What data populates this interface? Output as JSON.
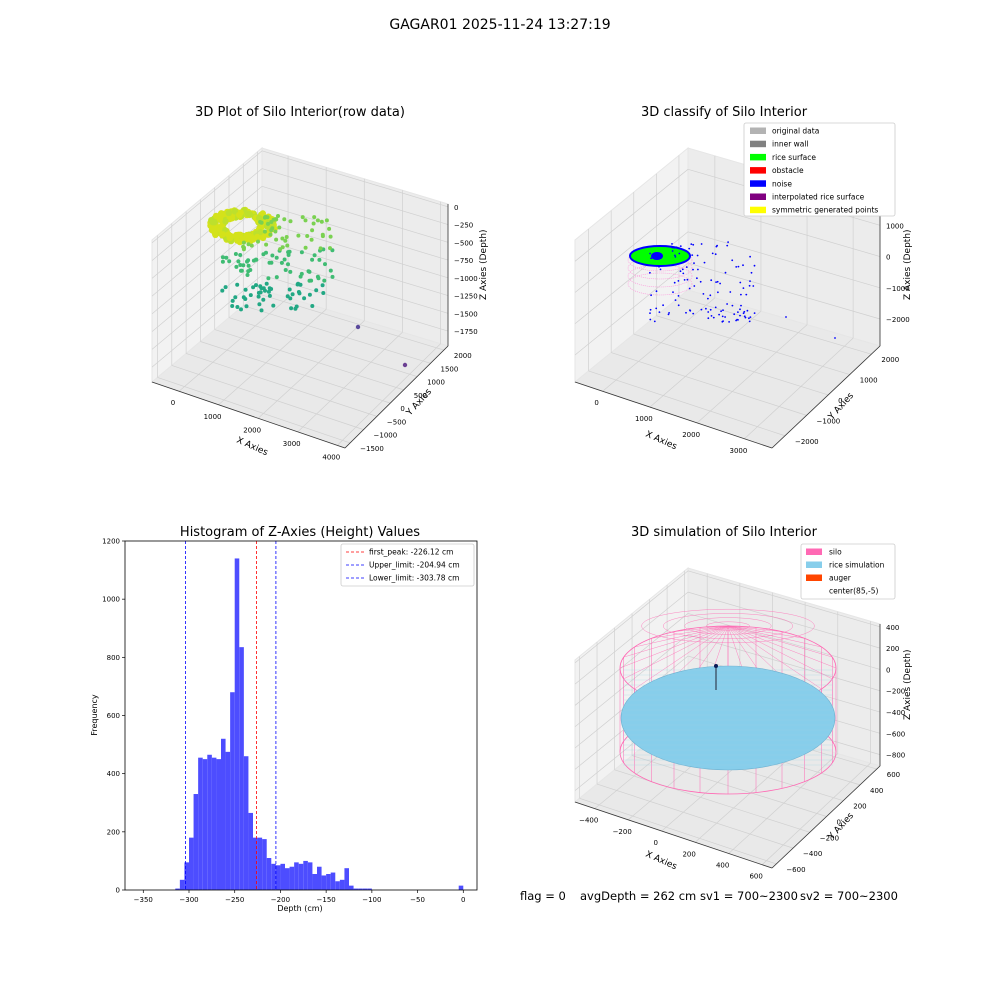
{
  "figure": {
    "suptitle": "GAGAR01 2025-11-24 13:27:19",
    "status": {
      "flag": "flag = 0",
      "avg_depth": "avgDepth = 262 cm",
      "sv1": "sv1 = 700~2300",
      "sv2": "sv2 = 700~2300"
    }
  },
  "colors": {
    "original_data": "#b3b3b3",
    "inner_wall": "#808080",
    "rice_surface": "#00ff00",
    "obstacle": "#ff0000",
    "noise": "#0000ff",
    "interpolated_rice_surface": "#800080",
    "symmetric_generated_points": "#ffff00",
    "silo": "#ff69b4",
    "rice_simulation": "#87ceeb",
    "auger": "#ff4500",
    "hist_bar": "#4d4dff",
    "first_peak_line": "#ff0000",
    "limit_line": "#0000ff"
  },
  "chart_data": [
    {
      "type": "scatter",
      "projection": "3d",
      "title": "3D Plot of Silo Interior(row data)",
      "xlabel": "X Axies",
      "ylabel": "Y Axies",
      "zlabel": "Z Axies (Depth)",
      "xticks": [
        "0",
        "1000",
        "2000",
        "3000",
        "4000"
      ],
      "yticks": [
        "−1500",
        "−1000",
        "−500",
        "0",
        "500",
        "1000",
        "1500",
        "2000"
      ],
      "zticks": [
        "0",
        "−250",
        "−500",
        "−750",
        "−1000",
        "−1250",
        "−1500",
        "−1750"
      ],
      "colormap": "viridis (by depth)",
      "grid": true
    },
    {
      "type": "scatter",
      "projection": "3d",
      "title": "3D classify of Silo Interior",
      "xlabel": "X Axies",
      "ylabel": "Y Axies",
      "zlabel": "Z Axies (Depth)",
      "xticks": [
        "0",
        "1000",
        "2000",
        "3000"
      ],
      "yticks": [
        "−2000",
        "−1000",
        "0",
        "1000",
        "2000"
      ],
      "zticks": [
        "1000",
        "0",
        "−1000",
        "−2000"
      ],
      "legend": [
        {
          "label": "original data",
          "color": "#b3b3b3"
        },
        {
          "label": "inner wall",
          "color": "#808080"
        },
        {
          "label": "rice surface",
          "color": "#00ff00"
        },
        {
          "label": "obstacle",
          "color": "#ff0000"
        },
        {
          "label": "noise",
          "color": "#0000ff"
        },
        {
          "label": "interpolated rice surface",
          "color": "#800080"
        },
        {
          "label": "symmetric generated points",
          "color": "#ffff00"
        }
      ],
      "legend_position": "top-right",
      "grid": true
    },
    {
      "type": "bar",
      "title": "Histogram of Z-Axies (Height) Values",
      "xlabel": "Depth (cm)",
      "ylabel": "Frequency",
      "xlim": [
        -370,
        15
      ],
      "ylim": [
        0,
        1200
      ],
      "xticks": [
        -350,
        -300,
        -250,
        -200,
        -150,
        -100,
        -50,
        0
      ],
      "yticks": [
        0,
        200,
        400,
        600,
        800,
        1000,
        1200
      ],
      "xtick_labels": [
        "−350",
        "−300",
        "−250",
        "−200",
        "−150",
        "−100",
        "−50",
        "0"
      ],
      "bin_width": 5,
      "bins": [
        {
          "x0": -315,
          "value": 5
        },
        {
          "x0": -310,
          "value": 35
        },
        {
          "x0": -305,
          "value": 95
        },
        {
          "x0": -300,
          "value": 180
        },
        {
          "x0": -295,
          "value": 330
        },
        {
          "x0": -290,
          "value": 455
        },
        {
          "x0": -285,
          "value": 450
        },
        {
          "x0": -280,
          "value": 465
        },
        {
          "x0": -275,
          "value": 455
        },
        {
          "x0": -270,
          "value": 450
        },
        {
          "x0": -265,
          "value": 520
        },
        {
          "x0": -260,
          "value": 475
        },
        {
          "x0": -255,
          "value": 680
        },
        {
          "x0": -250,
          "value": 1140
        },
        {
          "x0": -245,
          "value": 835
        },
        {
          "x0": -240,
          "value": 460
        },
        {
          "x0": -235,
          "value": 265
        },
        {
          "x0": -230,
          "value": 180
        },
        {
          "x0": -225,
          "value": 180
        },
        {
          "x0": -220,
          "value": 175
        },
        {
          "x0": -215,
          "value": 110
        },
        {
          "x0": -210,
          "value": 90
        },
        {
          "x0": -205,
          "value": 85
        },
        {
          "x0": -200,
          "value": 90
        },
        {
          "x0": -195,
          "value": 75
        },
        {
          "x0": -190,
          "value": 80
        },
        {
          "x0": -185,
          "value": 95
        },
        {
          "x0": -180,
          "value": 90
        },
        {
          "x0": -175,
          "value": 100
        },
        {
          "x0": -170,
          "value": 95
        },
        {
          "x0": -165,
          "value": 55
        },
        {
          "x0": -160,
          "value": 80
        },
        {
          "x0": -155,
          "value": 50
        },
        {
          "x0": -150,
          "value": 55
        },
        {
          "x0": -145,
          "value": 60
        },
        {
          "x0": -140,
          "value": 30
        },
        {
          "x0": -135,
          "value": 35
        },
        {
          "x0": -130,
          "value": 75
        },
        {
          "x0": -125,
          "value": 15
        },
        {
          "x0": -120,
          "value": 5
        },
        {
          "x0": -115,
          "value": 5
        },
        {
          "x0": -110,
          "value": 5
        },
        {
          "x0": -105,
          "value": 5
        },
        {
          "x0": -5,
          "value": 15
        }
      ],
      "vlines": [
        {
          "x": -226.12,
          "label": "first_peak: -226.12 cm",
          "color": "#ff0000"
        },
        {
          "x": -204.94,
          "label": "Upper_limit: -204.94 cm",
          "color": "#0000ff"
        },
        {
          "x": -303.78,
          "label": "Lower_limit: -303.78 cm",
          "color": "#0000ff"
        }
      ],
      "legend_position": "top-right"
    },
    {
      "type": "surface",
      "projection": "3d",
      "title": "3D simulation of Silo Interior",
      "xlabel": "X Axies",
      "ylabel": "Y Axies",
      "zlabel": "Z Axies (Depth)",
      "xticks": [
        "−400",
        "−200",
        "0",
        "200",
        "400",
        "600"
      ],
      "yticks": [
        "−600",
        "−400",
        "−200",
        "0",
        "200",
        "400",
        "600"
      ],
      "zticks": [
        "400",
        "200",
        "0",
        "−200",
        "−400",
        "−600",
        "−800"
      ],
      "legend": [
        {
          "label": "silo",
          "color": "#ff69b4"
        },
        {
          "label": "rice simulation",
          "color": "#87ceeb"
        },
        {
          "label": "auger",
          "color": "#ff4500"
        },
        {
          "label": "center(85,-5)",
          "color": "#ffffff"
        }
      ],
      "legend_position": "top-right",
      "grid": true
    }
  ]
}
